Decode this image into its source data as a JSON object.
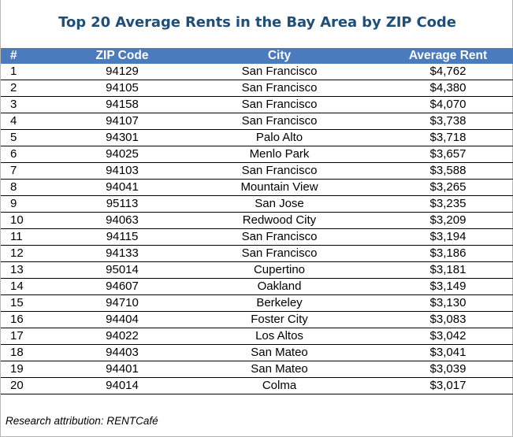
{
  "chart_data": {
    "type": "table",
    "title": "Top 20 Average Rents in the Bay Area by ZIP Code",
    "columns": [
      "#",
      "ZIP Code",
      "City",
      "Average Rent"
    ],
    "rows": [
      {
        "rank": "1",
        "zip": "94129",
        "city": "San Francisco",
        "rent": "$4,762"
      },
      {
        "rank": "2",
        "zip": "94105",
        "city": "San Francisco",
        "rent": "$4,380"
      },
      {
        "rank": "3",
        "zip": "94158",
        "city": "San Francisco",
        "rent": "$4,070"
      },
      {
        "rank": "4",
        "zip": "94107",
        "city": "San Francisco",
        "rent": "$3,738"
      },
      {
        "rank": "5",
        "zip": "94301",
        "city": "Palo Alto",
        "rent": "$3,718"
      },
      {
        "rank": "6",
        "zip": "94025",
        "city": "Menlo Park",
        "rent": "$3,657"
      },
      {
        "rank": "7",
        "zip": "94103",
        "city": "San Francisco",
        "rent": "$3,588"
      },
      {
        "rank": "8",
        "zip": "94041",
        "city": "Mountain View",
        "rent": "$3,265"
      },
      {
        "rank": "9",
        "zip": "95113",
        "city": "San Jose",
        "rent": "$3,235"
      },
      {
        "rank": "10",
        "zip": "94063",
        "city": "Redwood City",
        "rent": "$3,209"
      },
      {
        "rank": "11",
        "zip": "94115",
        "city": "San Francisco",
        "rent": "$3,194"
      },
      {
        "rank": "12",
        "zip": "94133",
        "city": "San Francisco",
        "rent": "$3,186"
      },
      {
        "rank": "13",
        "zip": "95014",
        "city": "Cupertino",
        "rent": "$3,181"
      },
      {
        "rank": "14",
        "zip": "94607",
        "city": "Oakland",
        "rent": "$3,149"
      },
      {
        "rank": "15",
        "zip": "94710",
        "city": "Berkeley",
        "rent": "$3,130"
      },
      {
        "rank": "16",
        "zip": "94404",
        "city": "Foster City",
        "rent": "$3,083"
      },
      {
        "rank": "17",
        "zip": "94022",
        "city": "Los Altos",
        "rent": "$3,042"
      },
      {
        "rank": "18",
        "zip": "94403",
        "city": "San Mateo",
        "rent": "$3,041"
      },
      {
        "rank": "19",
        "zip": "94401",
        "city": "San Mateo",
        "rent": "$3,039"
      },
      {
        "rank": "20",
        "zip": "94014",
        "city": "Colma",
        "rent": "$3,017"
      }
    ],
    "source": "Research attribution: RENTCafé"
  },
  "colors": {
    "title": "#1f4e79",
    "header_background": "#4a7bbd",
    "header_text": "#ffffff",
    "row_divider": "#000000"
  }
}
